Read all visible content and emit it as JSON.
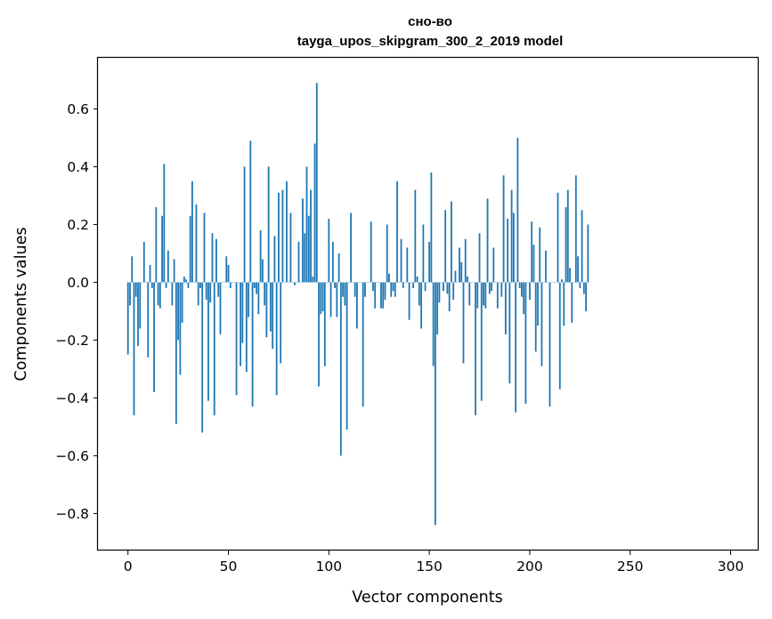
{
  "chart_data": {
    "type": "bar",
    "title": "сно-во",
    "subtitle": "tayga_upos_skipgram_300_2_2019 model",
    "xlabel": "Vector components",
    "ylabel": "Components values",
    "xlim": [
      -14.95,
      313.95
    ],
    "ylim": [
      -0.928,
      0.78
    ],
    "xticks": [
      0,
      50,
      100,
      150,
      200,
      250,
      300
    ],
    "yticks": [
      -0.8,
      -0.6,
      -0.4,
      -0.2,
      0.0,
      0.2,
      0.4,
      0.6
    ],
    "ytick_labels": [
      "−0.8",
      "−0.6",
      "−0.4",
      "−0.2",
      "0.0",
      "0.2",
      "0.4",
      "0.6"
    ],
    "grid": false,
    "bar_color": "#1f77b4",
    "series": [
      {
        "x_start": 0,
        "values": [
          -0.25,
          -0.08,
          0.09,
          -0.46,
          -0.05,
          -0.22,
          -0.16,
          0.0,
          0.14,
          0.0,
          -0.26,
          0.06,
          -0.02,
          -0.38,
          0.26,
          -0.08,
          -0.09,
          0.23,
          0.41,
          -0.02,
          0.11,
          0.0,
          -0.08,
          0.08,
          -0.49,
          -0.2,
          -0.32,
          -0.14,
          0.02,
          0.01,
          -0.02,
          0.23,
          0.35,
          0.0,
          0.27,
          -0.08,
          -0.02,
          -0.52,
          0.24,
          -0.06,
          -0.41,
          -0.07,
          0.17,
          -0.46,
          0.15,
          -0.05,
          -0.18,
          0.0,
          0.0,
          0.09,
          0.06,
          -0.02,
          0.0,
          0.0,
          -0.39,
          0.0,
          -0.29,
          -0.21,
          0.4,
          -0.31,
          -0.12,
          0.49,
          -0.43,
          -0.02,
          -0.04,
          -0.11,
          0.18,
          0.08,
          -0.08,
          -0.19,
          0.4,
          -0.17,
          -0.23,
          0.16,
          -0.39,
          0.31,
          -0.28,
          0.32,
          0.0,
          0.35,
          0.0,
          0.24,
          0.0,
          -0.01,
          0.0,
          0.14,
          0.0,
          0.29,
          0.17,
          0.4,
          0.23,
          0.32,
          0.02,
          0.48,
          0.69,
          -0.36,
          -0.11,
          -0.1,
          -0.29,
          0.0,
          0.22,
          -0.12,
          0.14,
          -0.02,
          -0.12,
          0.1,
          -0.6,
          -0.05,
          -0.08,
          -0.51,
          0.0,
          0.24,
          0.0,
          -0.05,
          -0.16,
          0.0,
          0.0,
          -0.43,
          -0.05,
          0.0,
          0.0,
          0.21,
          -0.03,
          -0.09,
          0.0,
          0.0,
          -0.09,
          -0.09,
          -0.06,
          0.2,
          0.03,
          -0.05,
          -0.03,
          -0.05,
          0.35,
          0.0,
          0.15,
          -0.02,
          0.0,
          0.12,
          -0.13,
          0.0,
          -0.02,
          0.32,
          0.02,
          -0.08,
          -0.16,
          0.2,
          -0.03,
          0.0,
          0.14,
          0.38,
          -0.29,
          -0.84,
          -0.18,
          -0.07,
          0.0,
          -0.03,
          0.25,
          -0.04,
          -0.1,
          0.28,
          -0.06,
          0.04,
          0.0,
          0.12,
          0.07,
          -0.28,
          0.15,
          0.02,
          -0.08,
          0.0,
          0.0,
          -0.46,
          -0.09,
          0.17,
          -0.41,
          -0.08,
          -0.09,
          0.29,
          -0.04,
          -0.03,
          0.12,
          0.0,
          -0.09,
          0.0,
          -0.05,
          0.37,
          -0.18,
          0.22,
          -0.35,
          0.32,
          0.24,
          -0.45,
          0.5,
          -0.02,
          -0.05,
          -0.11,
          -0.42,
          0.0,
          -0.06,
          0.21,
          0.13,
          -0.24,
          -0.15,
          0.19,
          -0.29,
          0.0,
          0.11,
          0.0,
          -0.43,
          0.0,
          0.0,
          0.0,
          0.31,
          -0.37,
          0.01,
          -0.15,
          0.26,
          0.32,
          0.05,
          -0.14,
          0.0,
          0.37,
          0.09,
          -0.02,
          0.25,
          -0.04,
          -0.1,
          0.2
        ]
      }
    ]
  }
}
